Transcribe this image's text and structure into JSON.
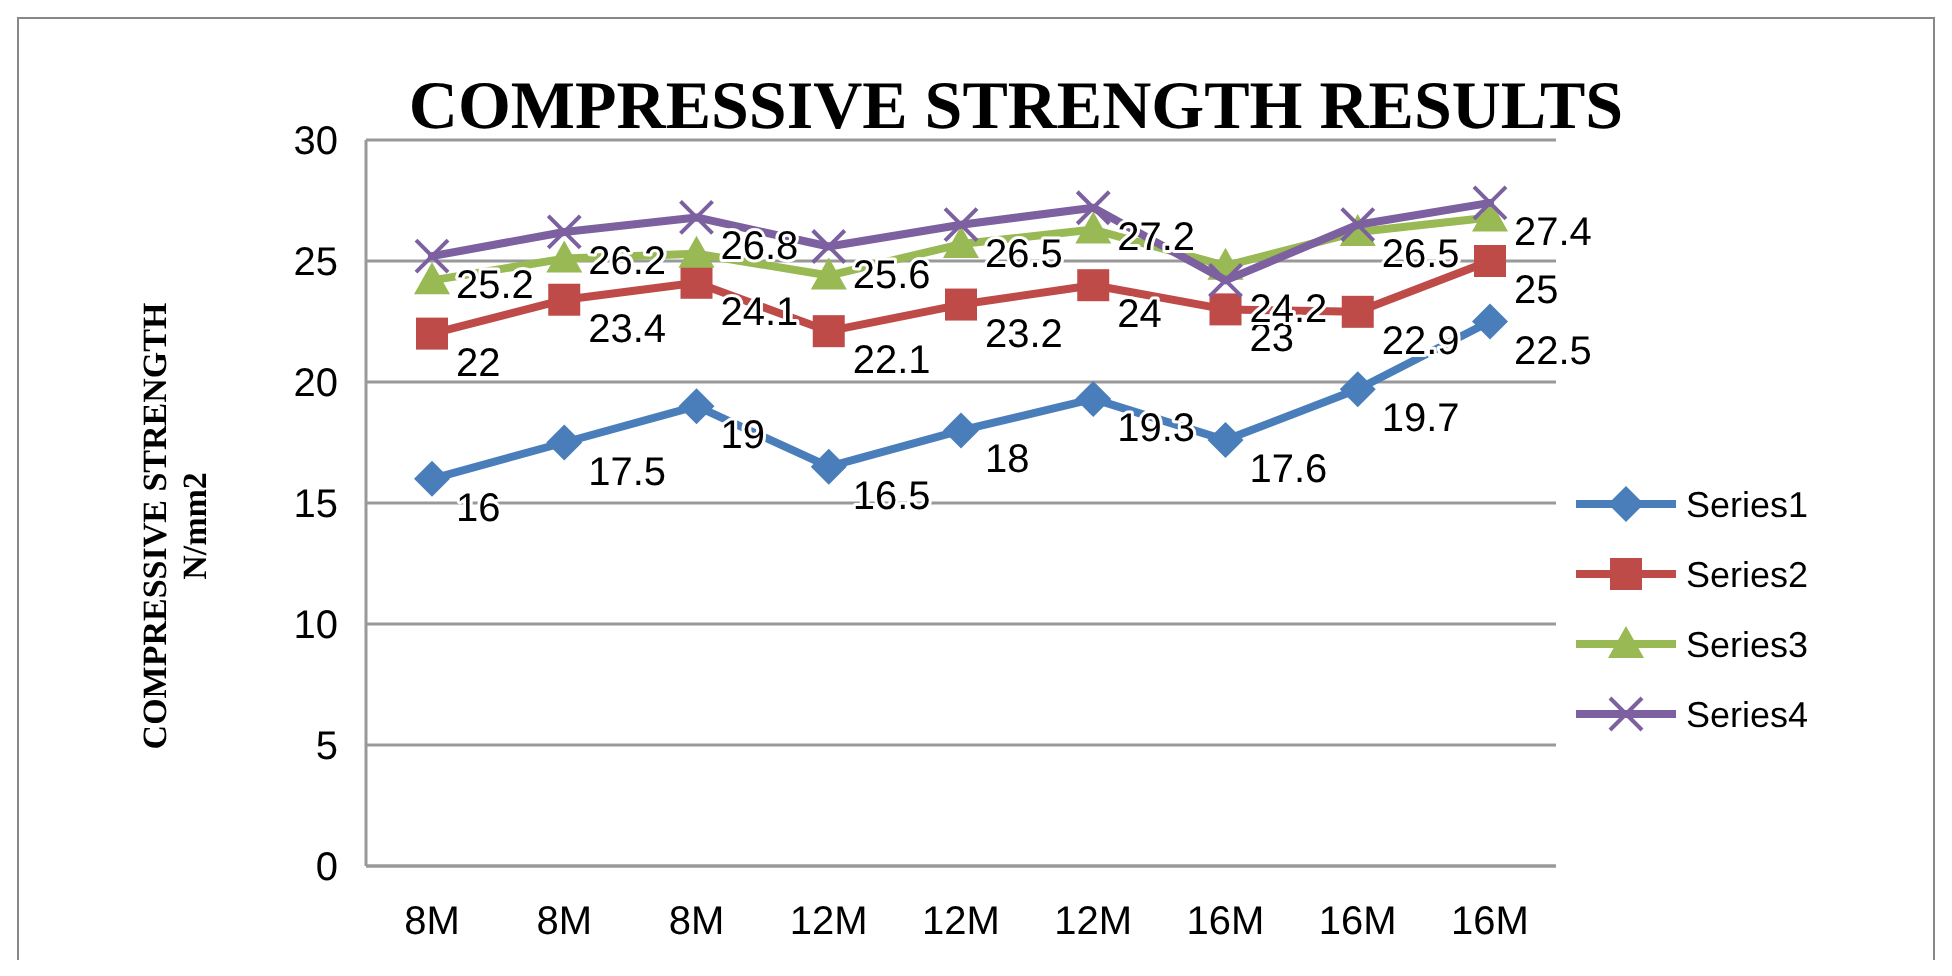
{
  "chart_data": {
    "type": "line",
    "title": "COMPRESSIVE STRENGTH RESULTS",
    "ylabel": "COMPRESSIVE STRENGTH\nN/mm2",
    "categories": [
      "8M",
      "8M",
      "8M",
      "12M",
      "12M",
      "12M",
      "16M",
      "16M",
      "16M"
    ],
    "ylim": [
      0,
      30
    ],
    "yticks": [
      0,
      5,
      10,
      15,
      20,
      25,
      30
    ],
    "grid": "y",
    "legend": "right",
    "series": [
      {
        "name": "Series1",
        "color": "#4a7ebb",
        "marker": "diamond",
        "values": [
          16,
          17.5,
          19,
          16.5,
          18,
          19.3,
          17.6,
          19.7,
          22.5
        ],
        "value_labels": [
          "16",
          "17.5",
          "19",
          "16.5",
          "18",
          "19.3",
          "17.6",
          "19.7",
          "22.5"
        ]
      },
      {
        "name": "Series2",
        "color": "#be4b48",
        "marker": "square",
        "values": [
          22,
          23.4,
          24.1,
          22.1,
          23.2,
          24,
          23,
          22.9,
          25
        ],
        "value_labels": [
          "22",
          "23.4",
          "24.1",
          "22.1",
          "23.2",
          "24",
          "23",
          "22.9",
          "25"
        ]
      },
      {
        "name": "Series3",
        "color": "#98b954",
        "marker": "triangle",
        "values": [
          24.2,
          25.1,
          25.3,
          24.4,
          25.7,
          26.3,
          24.8,
          26.2,
          26.8
        ]
      },
      {
        "name": "Series4",
        "color": "#7d60a0",
        "marker": "cross",
        "values": [
          25.2,
          26.2,
          26.8,
          25.6,
          26.5,
          27.2,
          24.2,
          26.5,
          27.4
        ],
        "value_labels": [
          "25.2",
          "26.2",
          "26.8",
          "25.6",
          "26.5",
          "27.2",
          "24.2",
          "26.5",
          "27.4"
        ]
      }
    ]
  }
}
